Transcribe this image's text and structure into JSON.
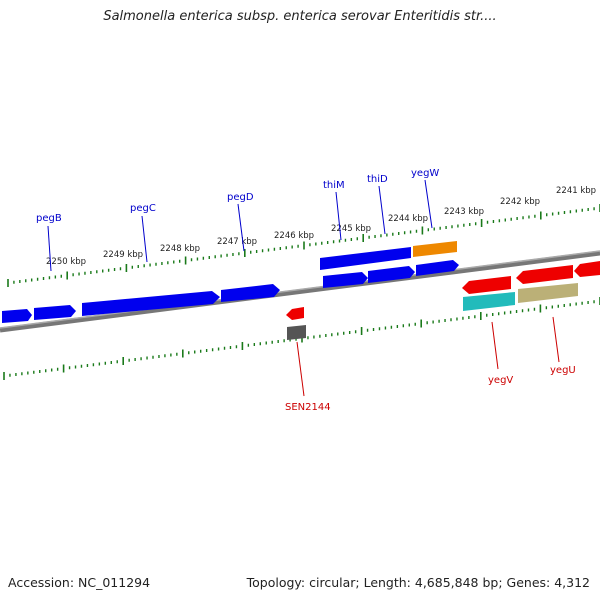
{
  "title": "Salmonella enterica subsp. enterica serovar Enteritidis str....",
  "footer": {
    "accession": "Accession: NC_011294",
    "summary": "Topology: circular; Length: 4,685,848 bp; Genes: 4,312"
  },
  "colors": {
    "backbone": "#777777",
    "tick": "#1a7a1a",
    "forward_label": "#0000cc",
    "reverse_label": "#cc0000"
  },
  "scale_labels": [
    "2250 kbp",
    "2249 kbp",
    "2248 kbp",
    "2247 kbp",
    "2246 kbp",
    "2245 kbp",
    "2244 kbp",
    "2243 kbp",
    "2242 kbp",
    "2241 kbp"
  ],
  "gene_labels": [
    {
      "text": "pegB",
      "strand": "forward"
    },
    {
      "text": "pegC",
      "strand": "forward"
    },
    {
      "text": "pegD",
      "strand": "forward"
    },
    {
      "text": "thiM",
      "strand": "forward"
    },
    {
      "text": "thiD",
      "strand": "forward"
    },
    {
      "text": "yegW",
      "strand": "forward"
    },
    {
      "text": "SEN2144",
      "strand": "reverse"
    },
    {
      "text": "yegV",
      "strand": "reverse"
    },
    {
      "text": "yegU",
      "strand": "reverse"
    }
  ],
  "features": [
    {
      "name": "pegB",
      "color": "#0000ee",
      "strand": "forward"
    },
    {
      "name": "pegC",
      "color": "#0000ee",
      "strand": "forward"
    },
    {
      "name": "pegD",
      "color": "#0000ee",
      "strand": "forward"
    },
    {
      "name": "thiM",
      "color": "#0000ee",
      "strand": "forward"
    },
    {
      "name": "thiD",
      "color": "#0000ee",
      "strand": "forward"
    },
    {
      "name": "yegW",
      "color": "#ee8800",
      "strand": "forward"
    },
    {
      "name": "SEN2144",
      "color": "#ee0000",
      "strand": "reverse"
    },
    {
      "name": "yegV",
      "color": "#ee0000",
      "strand": "reverse"
    },
    {
      "name": "yegU",
      "color": "#ee0000",
      "strand": "reverse"
    }
  ]
}
